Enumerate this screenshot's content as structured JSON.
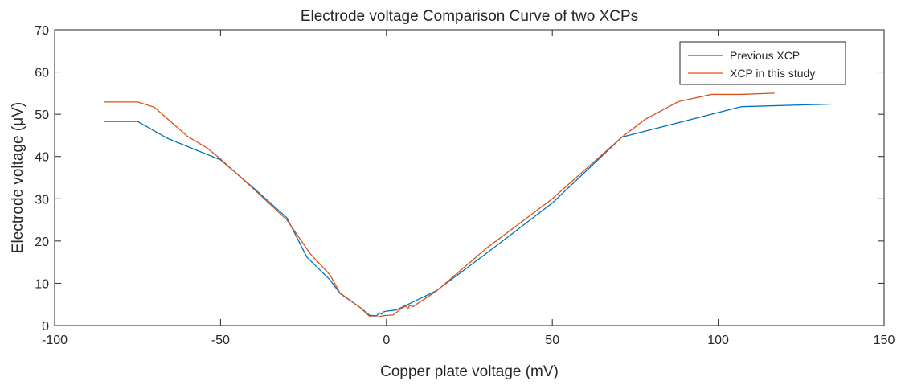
{
  "chart_data": {
    "type": "line",
    "title": "Electrode voltage Comparison Curve of two XCPs",
    "xlabel": "Copper plate voltage (mV)",
    "ylabel": "Electrode voltage (μV)",
    "xlim": [
      -100,
      150
    ],
    "ylim": [
      0,
      70
    ],
    "xticks": [
      -100,
      -50,
      0,
      50,
      100,
      150
    ],
    "yticks": [
      0,
      10,
      20,
      30,
      40,
      50,
      60,
      70
    ],
    "xtick_labels": [
      "-100",
      "-50",
      "0",
      "50",
      "100",
      "150"
    ],
    "ytick_labels": [
      "0",
      "10",
      "20",
      "30",
      "40",
      "50",
      "60",
      "70"
    ],
    "grid": false,
    "legend_position": "top-right",
    "series": [
      {
        "name": "Previous XCP",
        "color": "#0072BD",
        "x": [
          -85,
          -75,
          -66,
          -50,
          -40,
          -30,
          -24,
          -17,
          -14,
          -8,
          -5,
          -3,
          -2,
          -1.5,
          -1,
          0,
          3,
          7,
          15,
          30,
          50,
          71,
          107,
          134
        ],
        "y": [
          48.3,
          48.3,
          44.3,
          39.2,
          32.5,
          25.5,
          16.2,
          10.8,
          7.6,
          4.3,
          2.4,
          2.3,
          3.0,
          2.7,
          3.2,
          3.4,
          3.7,
          5.2,
          8.2,
          17.0,
          29.0,
          44.6,
          51.8,
          52.4
        ]
      },
      {
        "name": "XCP in this study",
        "color": "#D95319",
        "x": [
          -85,
          -75,
          -70,
          -60,
          -54,
          -50,
          -40,
          -30,
          -23,
          -17,
          -14,
          -8,
          -5,
          -3,
          -1,
          0,
          2,
          5,
          6,
          6.5,
          7,
          8,
          15,
          30,
          50,
          71,
          78,
          88,
          98,
          107,
          117
        ],
        "y": [
          52.9,
          52.9,
          51.7,
          44.8,
          42.0,
          39.4,
          32.3,
          25.0,
          17.0,
          12.0,
          7.7,
          4.3,
          2.1,
          2.0,
          2.3,
          2.4,
          2.5,
          4.3,
          4.6,
          3.9,
          4.8,
          4.5,
          8.1,
          18.2,
          30.0,
          44.6,
          48.8,
          53.0,
          54.7,
          54.7,
          55.0
        ]
      }
    ]
  }
}
